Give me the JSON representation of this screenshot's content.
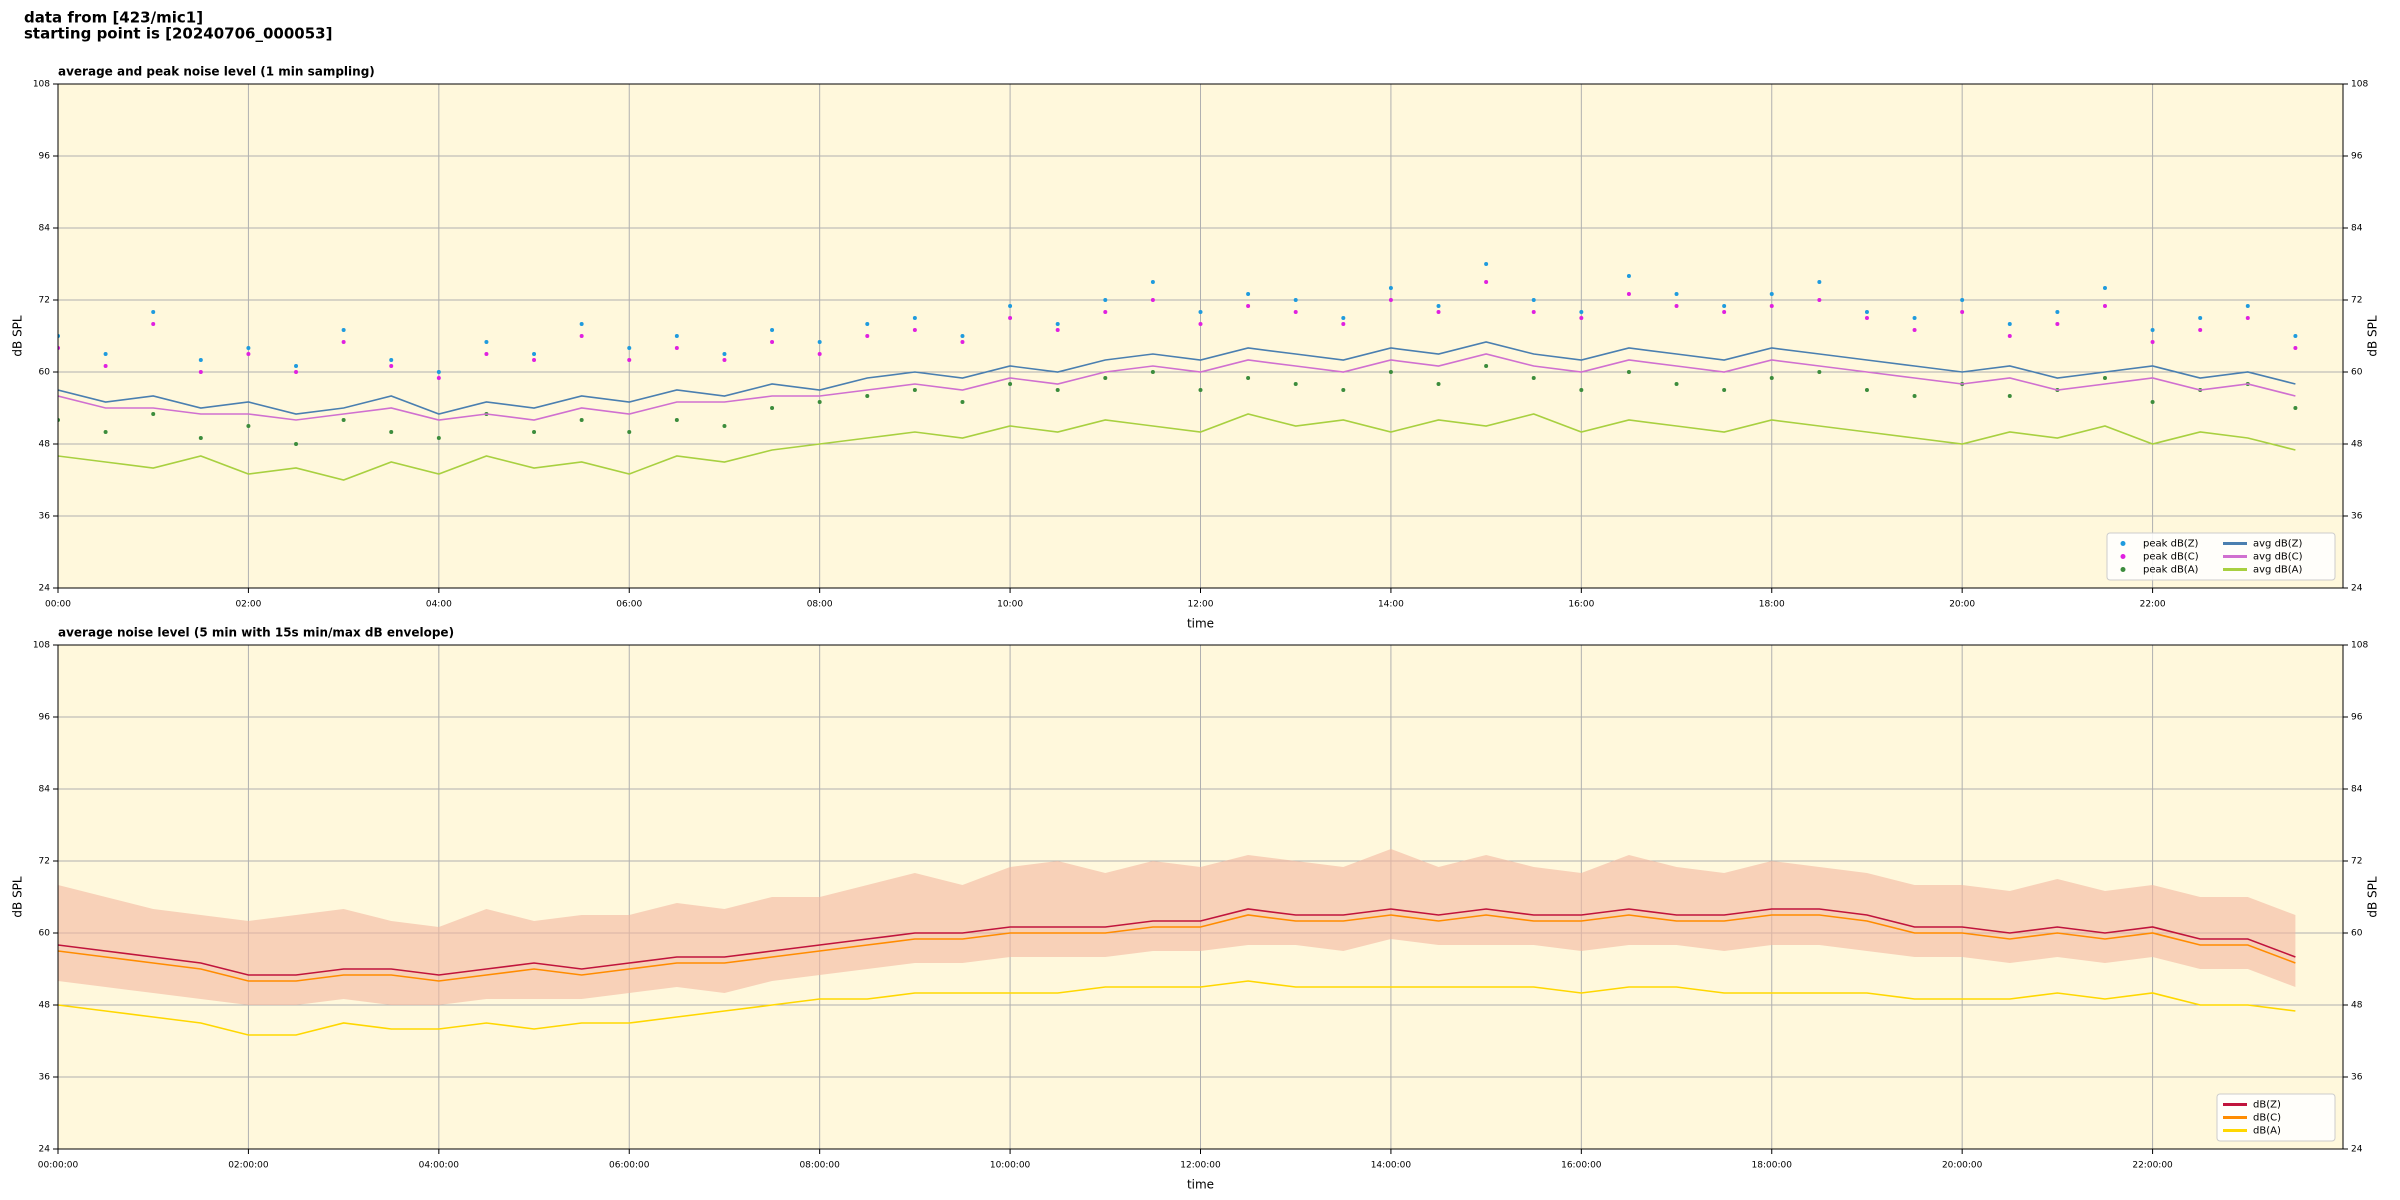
{
  "header": {
    "lines": [
      "data from [423/mic1]",
      "starting point is [20240706_000053]"
    ]
  },
  "chart_data": [
    {
      "type": "line",
      "title": "average and peak noise level (1 min sampling)",
      "xlabel": "time",
      "ylabel": "dB SPL",
      "x": [
        0,
        0.5,
        1,
        1.5,
        2,
        2.5,
        3,
        3.5,
        4,
        4.5,
        5,
        5.5,
        6,
        6.5,
        7,
        7.5,
        8,
        8.5,
        9,
        9.5,
        10,
        10.5,
        11,
        11.5,
        12,
        12.5,
        13,
        13.5,
        14,
        14.5,
        15,
        15.5,
        16,
        16.5,
        17,
        17.5,
        18,
        18.5,
        19,
        19.5,
        20,
        20.5,
        21,
        21.5,
        22,
        22.5,
        23,
        23.5
      ],
      "xlim": [
        0,
        24
      ],
      "xticks": [
        {
          "value": 0,
          "label": "00:00"
        },
        {
          "value": 2,
          "label": "02:00"
        },
        {
          "value": 4,
          "label": "04:00"
        },
        {
          "value": 6,
          "label": "06:00"
        },
        {
          "value": 8,
          "label": "08:00"
        },
        {
          "value": 10,
          "label": "10:00"
        },
        {
          "value": 12,
          "label": "12:00"
        },
        {
          "value": 14,
          "label": "14:00"
        },
        {
          "value": 16,
          "label": "16:00"
        },
        {
          "value": 18,
          "label": "18:00"
        },
        {
          "value": 20,
          "label": "20:00"
        },
        {
          "value": 22,
          "label": "22:00"
        }
      ],
      "ylim": [
        24,
        108
      ],
      "yticks": [
        24,
        36,
        48,
        60,
        72,
        84,
        96,
        108
      ],
      "grid": true,
      "legend": "lower right",
      "legend_columns": 2,
      "series": [
        {
          "name": "peak dB(Z)",
          "color": "#1f9bde",
          "style": "marker",
          "values": [
            66,
            63,
            70,
            62,
            64,
            61,
            67,
            62,
            60,
            65,
            63,
            68,
            64,
            66,
            63,
            67,
            65,
            68,
            69,
            66,
            71,
            68,
            72,
            75,
            70,
            73,
            72,
            69,
            74,
            71,
            78,
            72,
            70,
            76,
            73,
            71,
            73,
            75,
            70,
            69,
            72,
            68,
            70,
            74,
            67,
            69,
            71,
            66
          ]
        },
        {
          "name": "peak dB(C)",
          "color": "#e020e0",
          "style": "marker",
          "values": [
            64,
            61,
            68,
            60,
            63,
            60,
            65,
            61,
            59,
            63,
            62,
            66,
            62,
            64,
            62,
            65,
            63,
            66,
            67,
            65,
            69,
            67,
            70,
            72,
            68,
            71,
            70,
            68,
            72,
            70,
            75,
            70,
            69,
            73,
            71,
            70,
            71,
            72,
            69,
            67,
            70,
            66,
            68,
            71,
            65,
            67,
            69,
            64
          ]
        },
        {
          "name": "peak dB(A)",
          "color": "#3c8c3c",
          "style": "marker",
          "values": [
            52,
            50,
            53,
            49,
            51,
            48,
            52,
            50,
            49,
            53,
            50,
            52,
            50,
            52,
            51,
            54,
            55,
            56,
            57,
            55,
            58,
            57,
            59,
            60,
            57,
            59,
            58,
            57,
            60,
            58,
            61,
            59,
            57,
            60,
            58,
            57,
            59,
            60,
            57,
            56,
            58,
            56,
            57,
            59,
            55,
            57,
            58,
            54
          ]
        },
        {
          "name": "avg dB(Z)",
          "color": "#4a7fb0",
          "style": "line",
          "values": [
            57,
            55,
            56,
            54,
            55,
            53,
            54,
            56,
            53,
            55,
            54,
            56,
            55,
            57,
            56,
            58,
            57,
            59,
            60,
            59,
            61,
            60,
            62,
            63,
            62,
            64,
            63,
            62,
            64,
            63,
            65,
            63,
            62,
            64,
            63,
            62,
            64,
            63,
            62,
            61,
            60,
            61,
            59,
            60,
            61,
            59,
            60,
            58
          ]
        },
        {
          "name": "avg dB(C)",
          "color": "#d070d0",
          "style": "line",
          "values": [
            56,
            54,
            54,
            53,
            53,
            52,
            53,
            54,
            52,
            53,
            52,
            54,
            53,
            55,
            55,
            56,
            56,
            57,
            58,
            57,
            59,
            58,
            60,
            61,
            60,
            62,
            61,
            60,
            62,
            61,
            63,
            61,
            60,
            62,
            61,
            60,
            62,
            61,
            60,
            59,
            58,
            59,
            57,
            58,
            59,
            57,
            58,
            56
          ]
        },
        {
          "name": "avg dB(A)",
          "color": "#a8d040",
          "style": "line",
          "values": [
            46,
            45,
            44,
            46,
            43,
            44,
            42,
            45,
            43,
            46,
            44,
            45,
            43,
            46,
            45,
            47,
            48,
            49,
            50,
            49,
            51,
            50,
            52,
            51,
            50,
            53,
            51,
            52,
            50,
            52,
            51,
            53,
            50,
            52,
            51,
            50,
            52,
            51,
            50,
            49,
            48,
            50,
            49,
            51,
            48,
            50,
            49,
            47
          ]
        }
      ]
    },
    {
      "type": "line",
      "title": "average noise level (5 min with 15s min/max dB envelope)",
      "xlabel": "time",
      "ylabel": "dB SPL",
      "x": [
        0,
        0.5,
        1,
        1.5,
        2,
        2.5,
        3,
        3.5,
        4,
        4.5,
        5,
        5.5,
        6,
        6.5,
        7,
        7.5,
        8,
        8.5,
        9,
        9.5,
        10,
        10.5,
        11,
        11.5,
        12,
        12.5,
        13,
        13.5,
        14,
        14.5,
        15,
        15.5,
        16,
        16.5,
        17,
        17.5,
        18,
        18.5,
        19,
        19.5,
        20,
        20.5,
        21,
        21.5,
        22,
        22.5,
        23,
        23.5
      ],
      "xlim": [
        0,
        24
      ],
      "xticks": [
        {
          "value": 0,
          "label": "00:00:00"
        },
        {
          "value": 2,
          "label": "02:00:00"
        },
        {
          "value": 4,
          "label": "04:00:00"
        },
        {
          "value": 6,
          "label": "06:00:00"
        },
        {
          "value": 8,
          "label": "08:00:00"
        },
        {
          "value": 10,
          "label": "10:00:00"
        },
        {
          "value": 12,
          "label": "12:00:00"
        },
        {
          "value": 14,
          "label": "14:00:00"
        },
        {
          "value": 16,
          "label": "16:00:00"
        },
        {
          "value": 18,
          "label": "18:00:00"
        },
        {
          "value": 20,
          "label": "20:00:00"
        },
        {
          "value": 22,
          "label": "22:00:00"
        }
      ],
      "ylim": [
        24,
        108
      ],
      "yticks": [
        24,
        36,
        48,
        60,
        72,
        84,
        96,
        108
      ],
      "grid": true,
      "legend": "lower right",
      "legend_columns": 1,
      "envelope": {
        "color": "#f4b8a0",
        "min": [
          52,
          51,
          50,
          49,
          48,
          48,
          49,
          48,
          48,
          49,
          49,
          49,
          50,
          51,
          50,
          52,
          53,
          54,
          55,
          55,
          56,
          56,
          56,
          57,
          57,
          58,
          58,
          57,
          59,
          58,
          58,
          58,
          57,
          58,
          58,
          57,
          58,
          58,
          57,
          56,
          56,
          55,
          56,
          55,
          56,
          54,
          54,
          51
        ],
        "max": [
          68,
          66,
          64,
          63,
          62,
          63,
          64,
          62,
          61,
          64,
          62,
          63,
          63,
          65,
          64,
          66,
          66,
          68,
          70,
          68,
          71,
          72,
          70,
          72,
          71,
          73,
          72,
          71,
          74,
          71,
          73,
          71,
          70,
          73,
          71,
          70,
          72,
          71,
          70,
          68,
          68,
          67,
          69,
          67,
          68,
          66,
          66,
          63
        ]
      },
      "series": [
        {
          "name": "dB(Z)",
          "color": "#c0143c",
          "style": "line",
          "values": [
            58,
            57,
            56,
            55,
            53,
            53,
            54,
            54,
            53,
            54,
            55,
            54,
            55,
            56,
            56,
            57,
            58,
            59,
            60,
            60,
            61,
            61,
            61,
            62,
            62,
            64,
            63,
            63,
            64,
            63,
            64,
            63,
            63,
            64,
            63,
            63,
            64,
            64,
            63,
            61,
            61,
            60,
            61,
            60,
            61,
            59,
            59,
            56
          ]
        },
        {
          "name": "dB(C)",
          "color": "#ff8c00",
          "style": "line",
          "values": [
            57,
            56,
            55,
            54,
            52,
            52,
            53,
            53,
            52,
            53,
            54,
            53,
            54,
            55,
            55,
            56,
            57,
            58,
            59,
            59,
            60,
            60,
            60,
            61,
            61,
            63,
            62,
            62,
            63,
            62,
            63,
            62,
            62,
            63,
            62,
            62,
            63,
            63,
            62,
            60,
            60,
            59,
            60,
            59,
            60,
            58,
            58,
            55
          ]
        },
        {
          "name": "dB(A)",
          "color": "#ffd700",
          "style": "line",
          "values": [
            48,
            47,
            46,
            45,
            43,
            43,
            45,
            44,
            44,
            45,
            44,
            45,
            45,
            46,
            47,
            48,
            49,
            49,
            50,
            50,
            50,
            50,
            51,
            51,
            51,
            52,
            51,
            51,
            51,
            51,
            51,
            51,
            50,
            51,
            51,
            50,
            50,
            50,
            50,
            49,
            49,
            49,
            50,
            49,
            50,
            48,
            48,
            47
          ]
        }
      ]
    }
  ]
}
